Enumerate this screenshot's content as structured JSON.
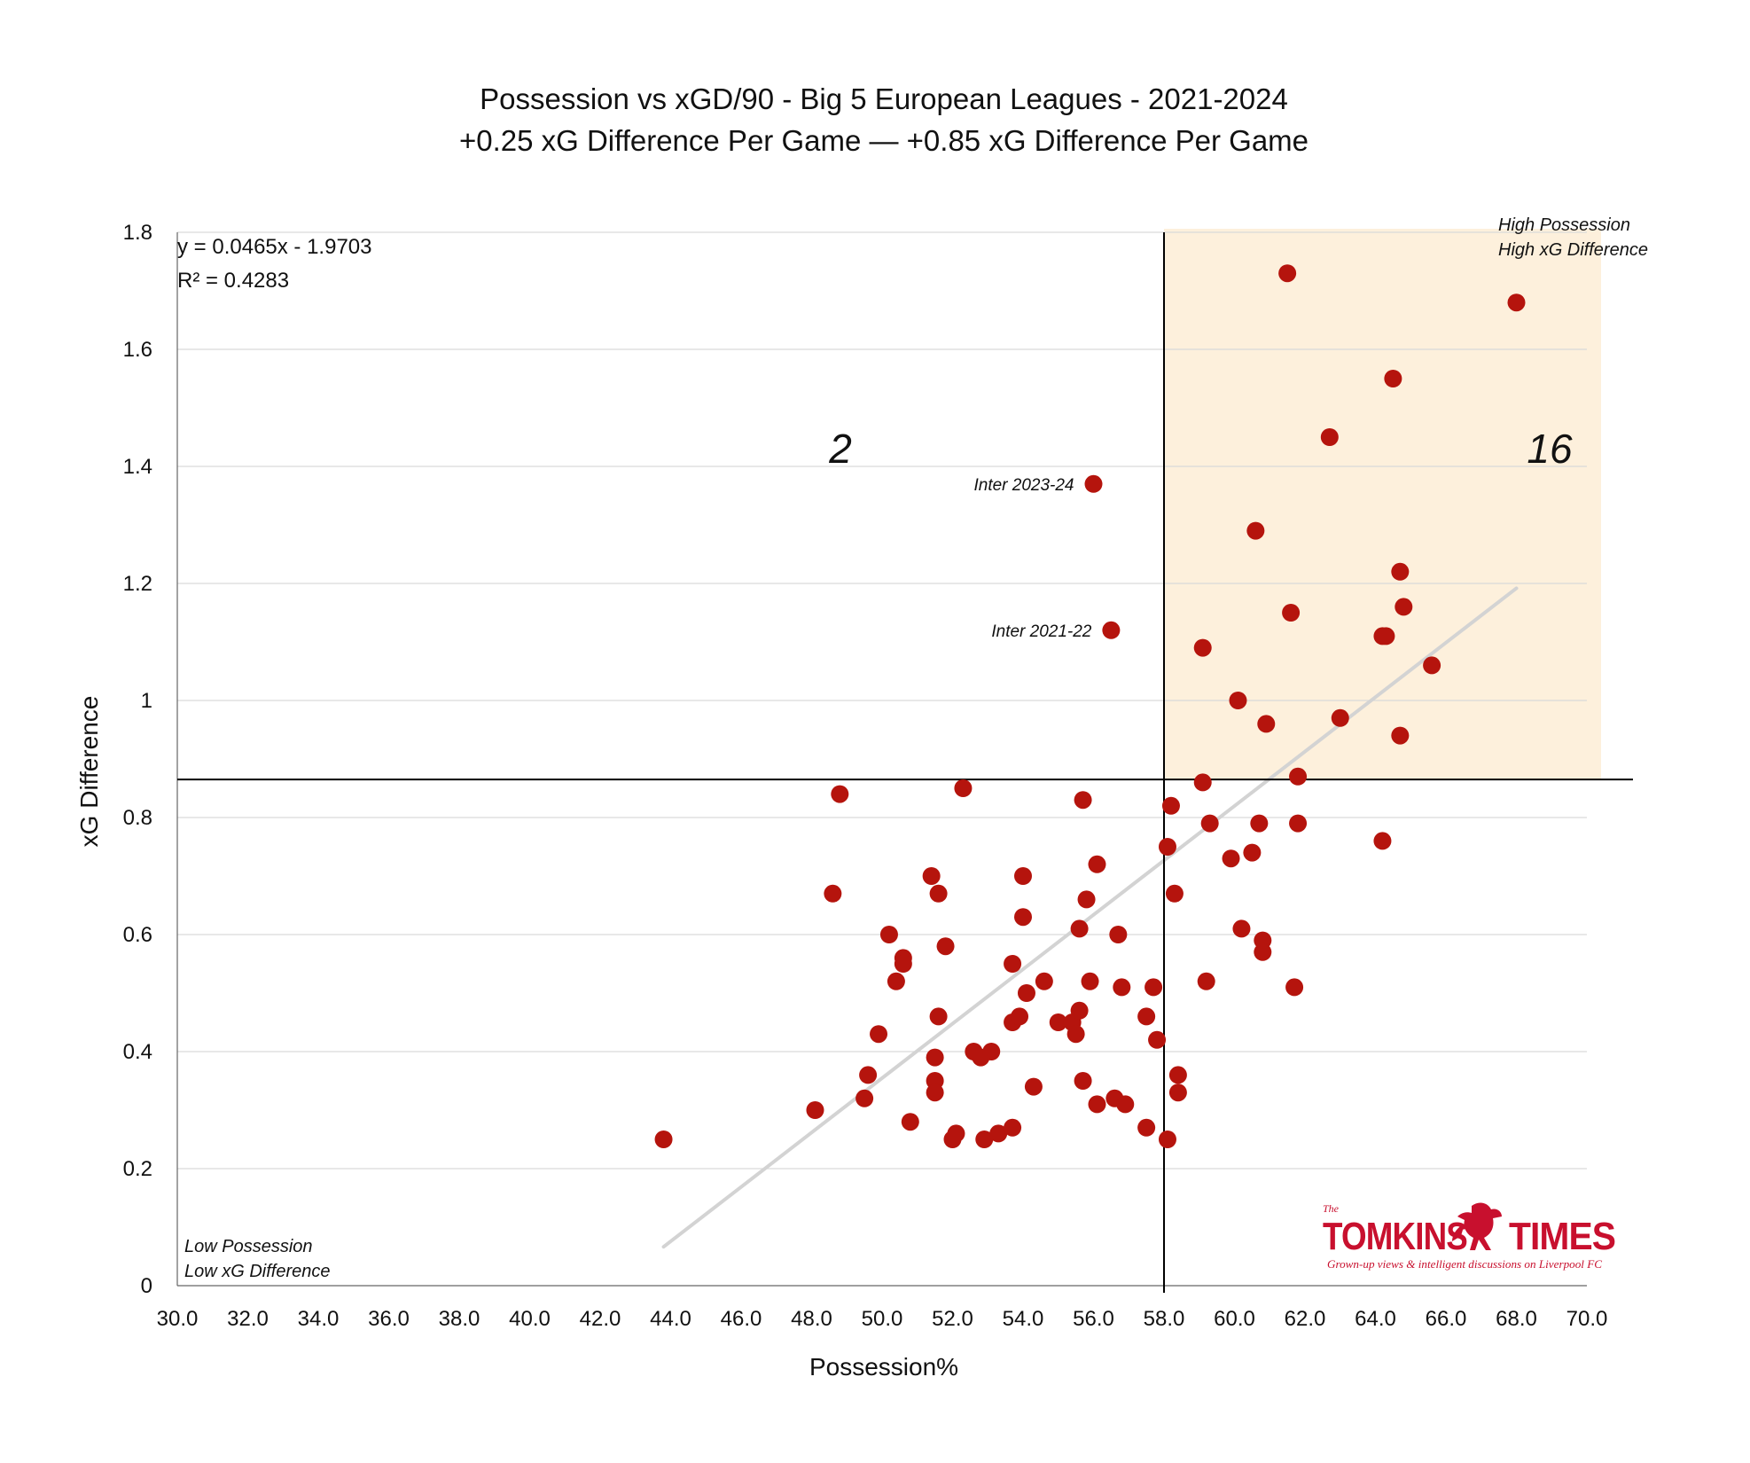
{
  "colors": {
    "point": "#b5140d",
    "quadrant_fill": "#fdf0dc",
    "trendline": "#d3d3d3",
    "gridline": "#d9d9d9",
    "reference_line": "#000000",
    "logo": "#c8102e"
  },
  "chart_data": {
    "type": "scatter",
    "title": "Possession vs xGD/90 - Big 5 European Leagues - 2021-2024",
    "subtitle": "+0.25 xG Difference Per Game — +0.85 xG Difference Per Game",
    "xlabel": "Possession%",
    "ylabel": "xG Difference",
    "xlim": [
      30,
      70
    ],
    "ylim": [
      0,
      1.8
    ],
    "xticks": [
      "30.0",
      "32.0",
      "34.0",
      "36.0",
      "38.0",
      "40.0",
      "42.0",
      "44.0",
      "46.0",
      "48.0",
      "50.0",
      "52.0",
      "54.0",
      "56.0",
      "58.0",
      "60.0",
      "62.0",
      "64.0",
      "66.0",
      "68.0",
      "70.0"
    ],
    "yticks": [
      "0",
      "0.2",
      "0.4",
      "0.6",
      "0.8",
      "1",
      "1.2",
      "1.4",
      "1.6",
      "1.8"
    ],
    "grid": "horizontal",
    "reference_lines": {
      "x": 58,
      "y": 0.865
    },
    "highlight_quadrant": "top-right",
    "trendline": {
      "equation": "y = 0.0465x - 1.9703",
      "r_squared": "R² = 0.4283",
      "slope": 0.0465,
      "intercept": -1.9703,
      "x_range": [
        43.8,
        68
      ]
    },
    "corner_notes": {
      "top_right": [
        "High Possession",
        "High xG Difference"
      ],
      "bottom_left": [
        "Low Possession",
        "Low xG Difference"
      ]
    },
    "quadrant_counts": {
      "top_left": "2",
      "top_right": "16"
    },
    "annotations": [
      {
        "text": "Inter  2023-24",
        "x": 56.0,
        "y": 1.37
      },
      {
        "text": "Inter  2021-22",
        "x": 56.5,
        "y": 1.12
      }
    ],
    "points": [
      [
        43.8,
        0.25
      ],
      [
        48.1,
        0.3
      ],
      [
        48.6,
        0.67
      ],
      [
        48.8,
        0.84
      ],
      [
        49.5,
        0.32
      ],
      [
        49.6,
        0.36
      ],
      [
        49.9,
        0.43
      ],
      [
        50.2,
        0.6
      ],
      [
        50.4,
        0.52
      ],
      [
        50.6,
        0.56
      ],
      [
        50.6,
        0.55
      ],
      [
        50.8,
        0.28
      ],
      [
        51.4,
        0.7
      ],
      [
        51.5,
        0.39
      ],
      [
        51.5,
        0.35
      ],
      [
        51.5,
        0.33
      ],
      [
        51.6,
        0.46
      ],
      [
        51.6,
        0.67
      ],
      [
        51.8,
        0.58
      ],
      [
        52.0,
        0.25
      ],
      [
        52.1,
        0.26
      ],
      [
        52.3,
        0.85
      ],
      [
        52.6,
        0.4
      ],
      [
        52.8,
        0.39
      ],
      [
        52.9,
        0.25
      ],
      [
        53.1,
        0.4
      ],
      [
        53.3,
        0.26
      ],
      [
        53.7,
        0.27
      ],
      [
        53.7,
        0.55
      ],
      [
        53.7,
        0.45
      ],
      [
        53.9,
        0.46
      ],
      [
        54.0,
        0.7
      ],
      [
        54.0,
        0.63
      ],
      [
        54.1,
        0.5
      ],
      [
        54.3,
        0.34
      ],
      [
        54.6,
        0.52
      ],
      [
        55.0,
        0.45
      ],
      [
        55.4,
        0.45
      ],
      [
        55.5,
        0.43
      ],
      [
        55.6,
        0.47
      ],
      [
        55.6,
        0.61
      ],
      [
        55.7,
        0.35
      ],
      [
        55.7,
        0.83
      ],
      [
        55.8,
        0.66
      ],
      [
        55.9,
        0.52
      ],
      [
        56.0,
        1.37
      ],
      [
        56.1,
        0.31
      ],
      [
        56.1,
        0.72
      ],
      [
        56.5,
        1.12
      ],
      [
        56.6,
        0.32
      ],
      [
        56.7,
        0.6
      ],
      [
        56.8,
        0.51
      ],
      [
        56.9,
        0.31
      ],
      [
        57.5,
        0.27
      ],
      [
        57.5,
        0.46
      ],
      [
        57.7,
        0.51
      ],
      [
        57.8,
        0.42
      ],
      [
        58.1,
        0.25
      ],
      [
        58.1,
        0.75
      ],
      [
        58.2,
        0.82
      ],
      [
        58.3,
        0.67
      ],
      [
        58.4,
        0.36
      ],
      [
        58.4,
        0.33
      ],
      [
        59.1,
        0.86
      ],
      [
        59.1,
        1.09
      ],
      [
        59.2,
        0.52
      ],
      [
        59.3,
        0.79
      ],
      [
        59.9,
        0.73
      ],
      [
        60.1,
        1.0
      ],
      [
        60.2,
        0.61
      ],
      [
        60.5,
        0.74
      ],
      [
        60.6,
        1.29
      ],
      [
        60.7,
        0.79
      ],
      [
        60.8,
        0.59
      ],
      [
        60.8,
        0.57
      ],
      [
        60.9,
        0.96
      ],
      [
        61.5,
        1.73
      ],
      [
        61.6,
        1.15
      ],
      [
        61.7,
        0.51
      ],
      [
        61.8,
        0.87
      ],
      [
        61.8,
        0.79
      ],
      [
        62.7,
        1.45
      ],
      [
        63.0,
        0.97
      ],
      [
        64.2,
        1.11
      ],
      [
        64.2,
        0.76
      ],
      [
        64.3,
        1.11
      ],
      [
        64.5,
        1.55
      ],
      [
        64.7,
        1.22
      ],
      [
        64.7,
        0.94
      ],
      [
        64.8,
        1.16
      ],
      [
        65.6,
        1.06
      ],
      [
        68.0,
        1.68
      ]
    ]
  },
  "logo": {
    "the": "The",
    "brand_left": "TOMKINS",
    "brand_right": "TIMES",
    "tagline": "Grown-up views & intelligent discussions on Liverpool FC"
  }
}
